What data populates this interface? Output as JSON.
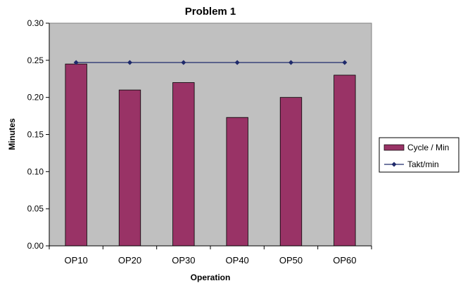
{
  "chart_data": {
    "type": "bar",
    "title": "Problem 1",
    "xlabel": "Operation",
    "ylabel": "Minutes",
    "categories": [
      "OP10",
      "OP20",
      "OP30",
      "OP40",
      "OP50",
      "OP60"
    ],
    "series": [
      {
        "name": "Cycle / Min",
        "type": "bar",
        "color": "#993366",
        "values": [
          0.245,
          0.21,
          0.22,
          0.173,
          0.2,
          0.23
        ]
      },
      {
        "name": "Takt/min",
        "type": "line",
        "color": "#1F2A6B",
        "marker": "diamond",
        "values": [
          0.247,
          0.247,
          0.247,
          0.247,
          0.247,
          0.247
        ]
      }
    ],
    "ylim": [
      0,
      0.3
    ],
    "yticks": [
      "0.00",
      "0.05",
      "0.10",
      "0.15",
      "0.20",
      "0.25",
      "0.30"
    ],
    "grid": false,
    "plot_background": "#C0C0C0",
    "legend_position": "right"
  }
}
